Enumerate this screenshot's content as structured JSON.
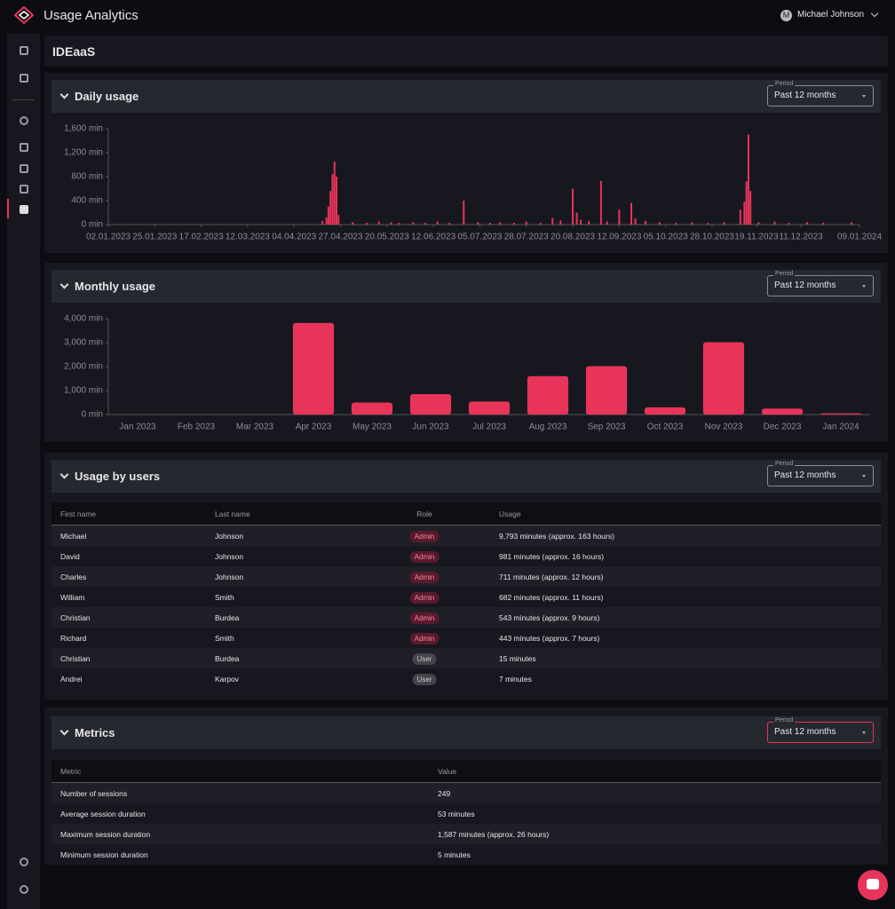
{
  "header": {
    "app_title": "Usage Analytics",
    "avatar": "M",
    "user_name": "Michael Johnson"
  },
  "page_title": "IDEaaS",
  "chart_data": [
    {
      "type": "bar",
      "title": "Daily usage",
      "period": {
        "label": "Period",
        "value": "Past 12 months"
      },
      "color": "#e8345a",
      "x": [
        "18.04.2023",
        "20.04.2023",
        "21.04.2023",
        "22.04.2023",
        "23.04.2023",
        "24.04.2023",
        "25.04.2023",
        "26.04.2023",
        "03.05.2023",
        "10.05.2023",
        "16.05.2023",
        "22.05.2023",
        "26.05.2023",
        "02.06.2023",
        "08.06.2023",
        "14.06.2023",
        "20.06.2023",
        "27.06.2023",
        "04.07.2023",
        "10.07.2023",
        "15.07.2023",
        "22.07.2023",
        "28.07.2023",
        "04.08.2023",
        "10.08.2023",
        "14.08.2023",
        "20.08.2023",
        "22.08.2023",
        "24.08.2023",
        "28.08.2023",
        "03.09.2023",
        "06.09.2023",
        "12.09.2023",
        "18.09.2023",
        "20.09.2023",
        "25.09.2023",
        "02.10.2023",
        "10.10.2023",
        "18.10.2023",
        "26.10.2023",
        "03.11.2023",
        "11.11.2023",
        "13.11.2023",
        "14.11.2023",
        "15.11.2023",
        "16.11.2023",
        "20.11.2023",
        "28.11.2023",
        "05.12.2023",
        "14.12.2023",
        "22.12.2023",
        "05.01.2024"
      ],
      "values": [
        60,
        120,
        300,
        560,
        840,
        1050,
        800,
        160,
        40,
        30,
        50,
        40,
        30,
        40,
        30,
        50,
        30,
        400,
        40,
        30,
        40,
        30,
        50,
        30,
        110,
        70,
        600,
        200,
        80,
        60,
        730,
        50,
        250,
        360,
        100,
        60,
        40,
        30,
        40,
        30,
        40,
        250,
        380,
        720,
        1500,
        560,
        40,
        50,
        30,
        40,
        30,
        40
      ],
      "xlim": [
        "02.01.2023",
        "09.01.2024"
      ],
      "xticks": [
        "02.01.2023",
        "25.01.2023",
        "17.02.2023",
        "12.03.2023",
        "04.04.2023",
        "27.04.2023",
        "20.05.2023",
        "12.06.2023",
        "05.07.2023",
        "28.07.2023",
        "20.08.2023",
        "12.09.2023",
        "05.10.2023",
        "28.10.2023",
        "19.11.2023",
        "11.12.2023",
        "09.01.2024"
      ],
      "ylim": [
        0,
        1600
      ],
      "yticks": [
        {
          "value": 0,
          "label": "0 min"
        },
        {
          "value": 400,
          "label": "400 min"
        },
        {
          "value": 800,
          "label": "800 min"
        },
        {
          "value": 1200,
          "label": "1,200 min"
        },
        {
          "value": 1600,
          "label": "1,600 min"
        }
      ]
    },
    {
      "type": "bar",
      "title": "Monthly usage",
      "period": {
        "label": "Period",
        "value": "Past 12 months"
      },
      "color": "#e8345a",
      "categories": [
        "Jan 2023",
        "Feb 2023",
        "Mar 2023",
        "Apr 2023",
        "May 2023",
        "Jun 2023",
        "Jul 2023",
        "Aug 2023",
        "Sep 2023",
        "Oct 2023",
        "Nov 2023",
        "Dec 2023",
        "Jan 2024"
      ],
      "values": [
        0,
        0,
        0,
        3820,
        500,
        850,
        540,
        1600,
        2020,
        300,
        3020,
        250,
        50
      ],
      "ylim": [
        0,
        4000
      ],
      "yticks": [
        {
          "value": 0,
          "label": "0 min"
        },
        {
          "value": 1000,
          "label": "1,000 min"
        },
        {
          "value": 2000,
          "label": "2,000 min"
        },
        {
          "value": 3000,
          "label": "3,000 min"
        },
        {
          "value": 4000,
          "label": "4,000 min"
        }
      ]
    }
  ],
  "users_table": {
    "title": "Usage by users",
    "period": {
      "label": "Period",
      "value": "Past 12 months"
    },
    "columns": [
      "First name",
      "Last name",
      "Role",
      "Usage"
    ],
    "rows": [
      [
        "Michael",
        "Johnson",
        "Admin",
        "9,793 minutes (approx. 163 hours)"
      ],
      [
        "David",
        "Johnson",
        "Admin",
        "981 minutes (approx. 16 hours)"
      ],
      [
        "Charles",
        "Johnson",
        "Admin",
        "711 minutes (approx. 12 hours)"
      ],
      [
        "William",
        "Smith",
        "Admin",
        "682 minutes (approx. 11 hours)"
      ],
      [
        "Christian",
        "Burdea",
        "Admin",
        "543 minutes (approx. 9 hours)"
      ],
      [
        "Richard",
        "Smith",
        "Admin",
        "443 minutes (approx. 7 hours)"
      ],
      [
        "Christian",
        "Burdea",
        "User",
        "15 minutes"
      ],
      [
        "Andrei",
        "Karpov",
        "User",
        "7 minutes"
      ]
    ]
  },
  "metrics_table": {
    "title": "Metrics",
    "period": {
      "label": "Period",
      "value": "Past 12 months"
    },
    "columns": [
      "Metric",
      "Value"
    ],
    "rows": [
      [
        "Number of sessions",
        "249"
      ],
      [
        "Average session duration",
        "53 minutes"
      ],
      [
        "Maximum session duration",
        "1,587 minutes (approx. 26 hours)"
      ],
      [
        "Minimum session duration",
        "5 minutes"
      ]
    ]
  }
}
